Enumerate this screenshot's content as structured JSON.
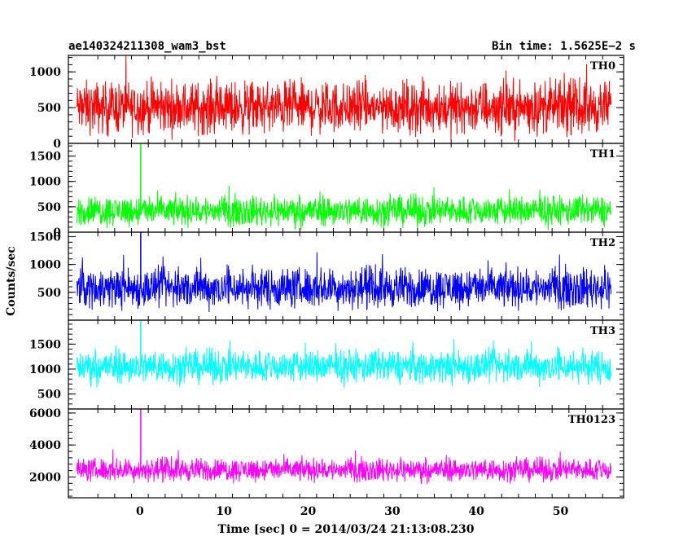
{
  "header": {
    "title": "ae140324211308_wam3_bst",
    "bin_time": "Bin time: 1.5625E−2 s"
  },
  "chart_data": {
    "type": "line",
    "xlabel": "Time [sec] 0 = 2014/03/24 21:13:08.230",
    "ylabel": "Counts/sec",
    "xlim": [
      -8.5,
      57.5
    ],
    "data_range": [
      -7.5,
      56.0
    ],
    "bin_time_s": 0.015625,
    "x_ticks": [
      0,
      10,
      20,
      30,
      40,
      50
    ],
    "x_tick_labels": [
      "0",
      "10",
      "20",
      "30",
      "40",
      "50"
    ],
    "panels": [
      {
        "name": "TH0",
        "color": "#ff0000",
        "ylim": [
          0,
          1230
        ],
        "y_ticks": [
          0,
          500,
          1000
        ],
        "y_tick_labels": [
          "0",
          "500",
          "1000"
        ],
        "mean": 500,
        "spread": 280,
        "min": 0,
        "max": 1230,
        "spikes": []
      },
      {
        "name": "TH1",
        "color": "#00ff00",
        "ylim": [
          0,
          1750
        ],
        "y_ticks": [
          0,
          500,
          1000,
          1500
        ],
        "y_tick_labels": [
          "0",
          "500",
          "1000",
          "1500"
        ],
        "mean": 420,
        "spread": 230,
        "min": 0,
        "max": 1500,
        "spikes": [
          {
            "x": 0.1,
            "y": 1750
          }
        ]
      },
      {
        "name": "TH2",
        "color": "#0000ff",
        "ylim": [
          0,
          1580
        ],
        "y_ticks": [
          500,
          1000,
          1500
        ],
        "y_tick_labels": [
          "500",
          "1000",
          "1500"
        ],
        "mean": 580,
        "spread": 280,
        "min": 0,
        "max": 1500,
        "spikes": [
          {
            "x": 0.1,
            "y": 1580
          }
        ]
      },
      {
        "name": "TH3",
        "color": "#00ffff",
        "ylim": [
          200,
          1980
        ],
        "y_ticks": [
          500,
          1000,
          1500
        ],
        "y_tick_labels": [
          "500",
          "1000",
          "1500"
        ],
        "mean": 1050,
        "spread": 260,
        "min": 250,
        "max": 1800,
        "spikes": [
          {
            "x": 0.1,
            "y": 1980
          }
        ]
      },
      {
        "name": "TH0123",
        "color": "#ff00ff",
        "ylim": [
          700,
          6250
        ],
        "y_ticks": [
          2000,
          4000,
          6000
        ],
        "y_tick_labels": [
          "2000",
          "4000",
          "6000"
        ],
        "mean": 2450,
        "spread": 560,
        "min": 800,
        "max": 4400,
        "spikes": [
          {
            "x": 0.1,
            "y": 6250
          }
        ]
      }
    ]
  }
}
